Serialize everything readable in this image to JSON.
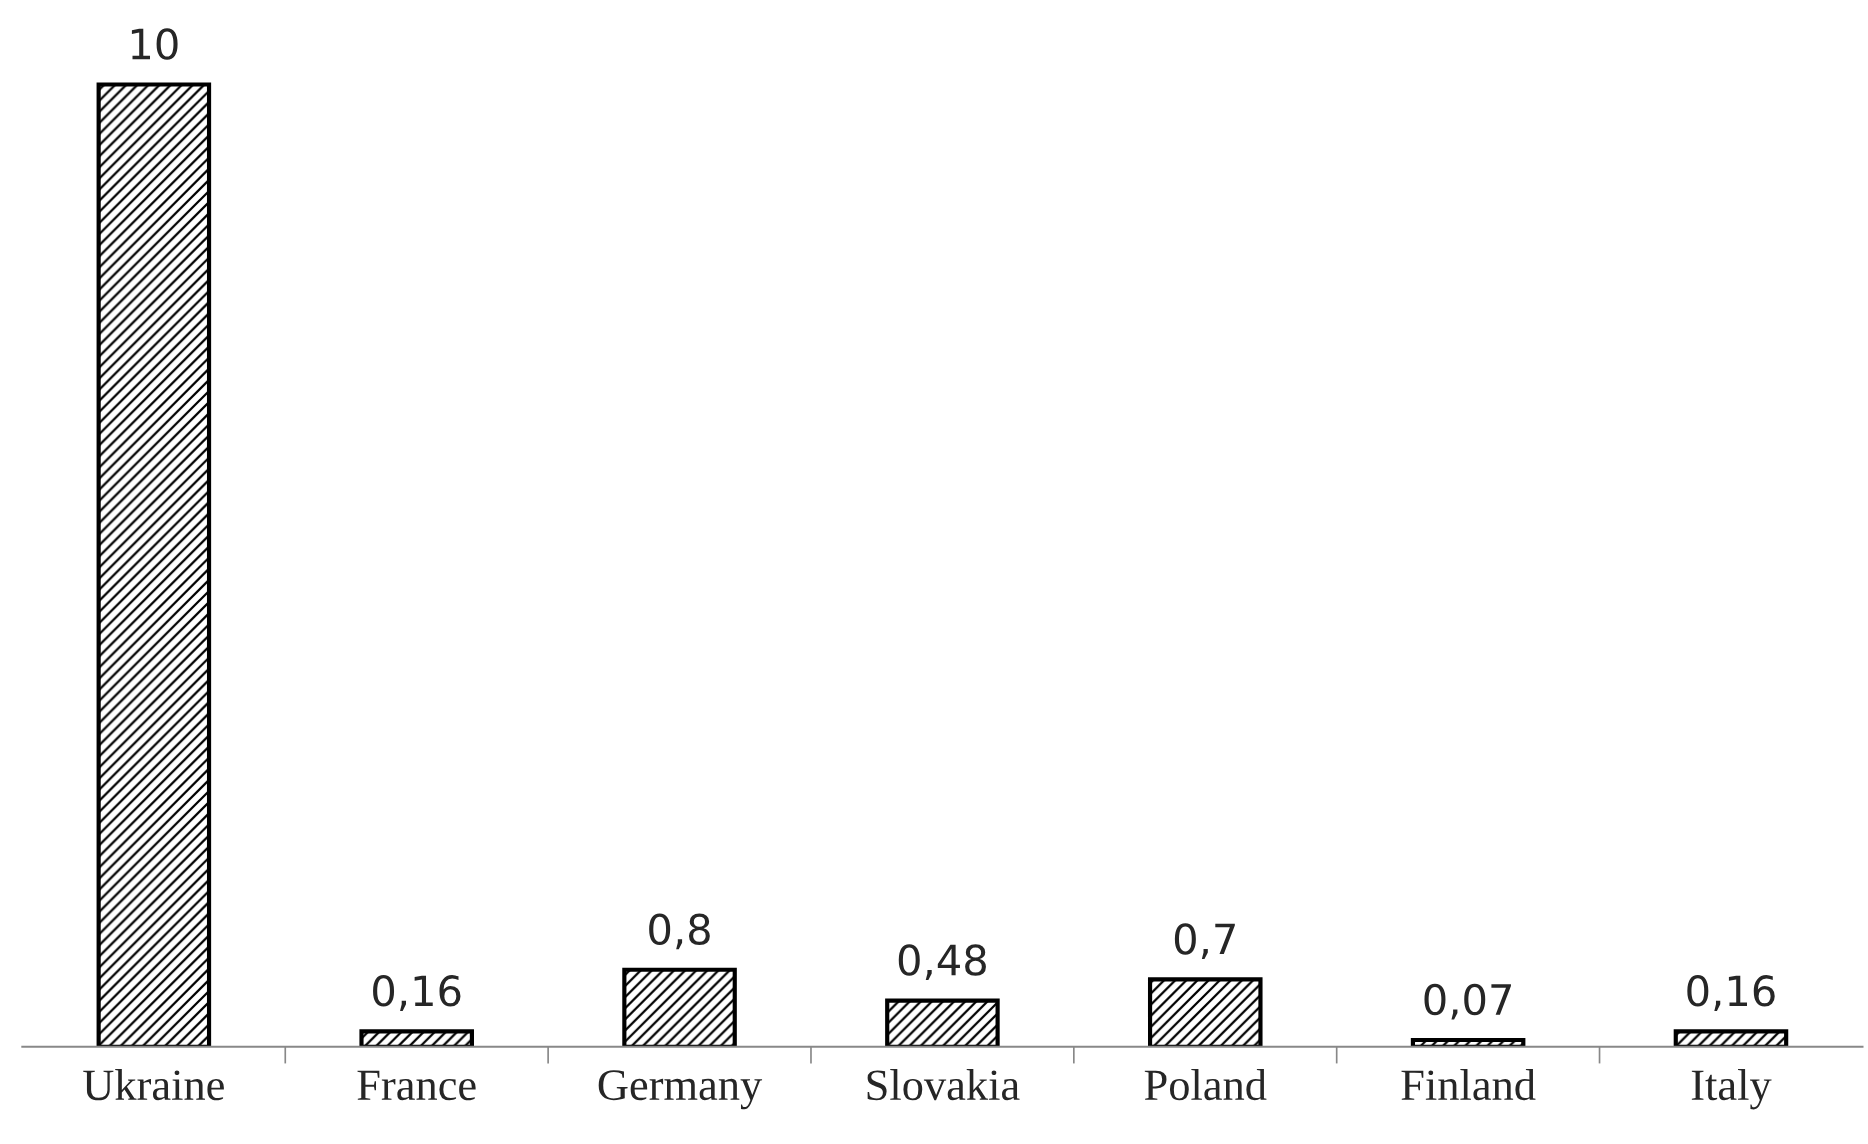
{
  "chart_data": {
    "type": "bar",
    "categories": [
      "Ukraine",
      "France",
      "Germany",
      "Slovakia",
      "Poland",
      "Finland",
      "Italy"
    ],
    "values": [
      10,
      0.16,
      0.8,
      0.48,
      0.7,
      0.07,
      0.16
    ],
    "value_labels": [
      "10",
      "0,16",
      "0,8",
      "0,48",
      "0,7",
      "0,07",
      "0,16"
    ],
    "color": "#000000",
    "grid": false,
    "legend": false
  }
}
